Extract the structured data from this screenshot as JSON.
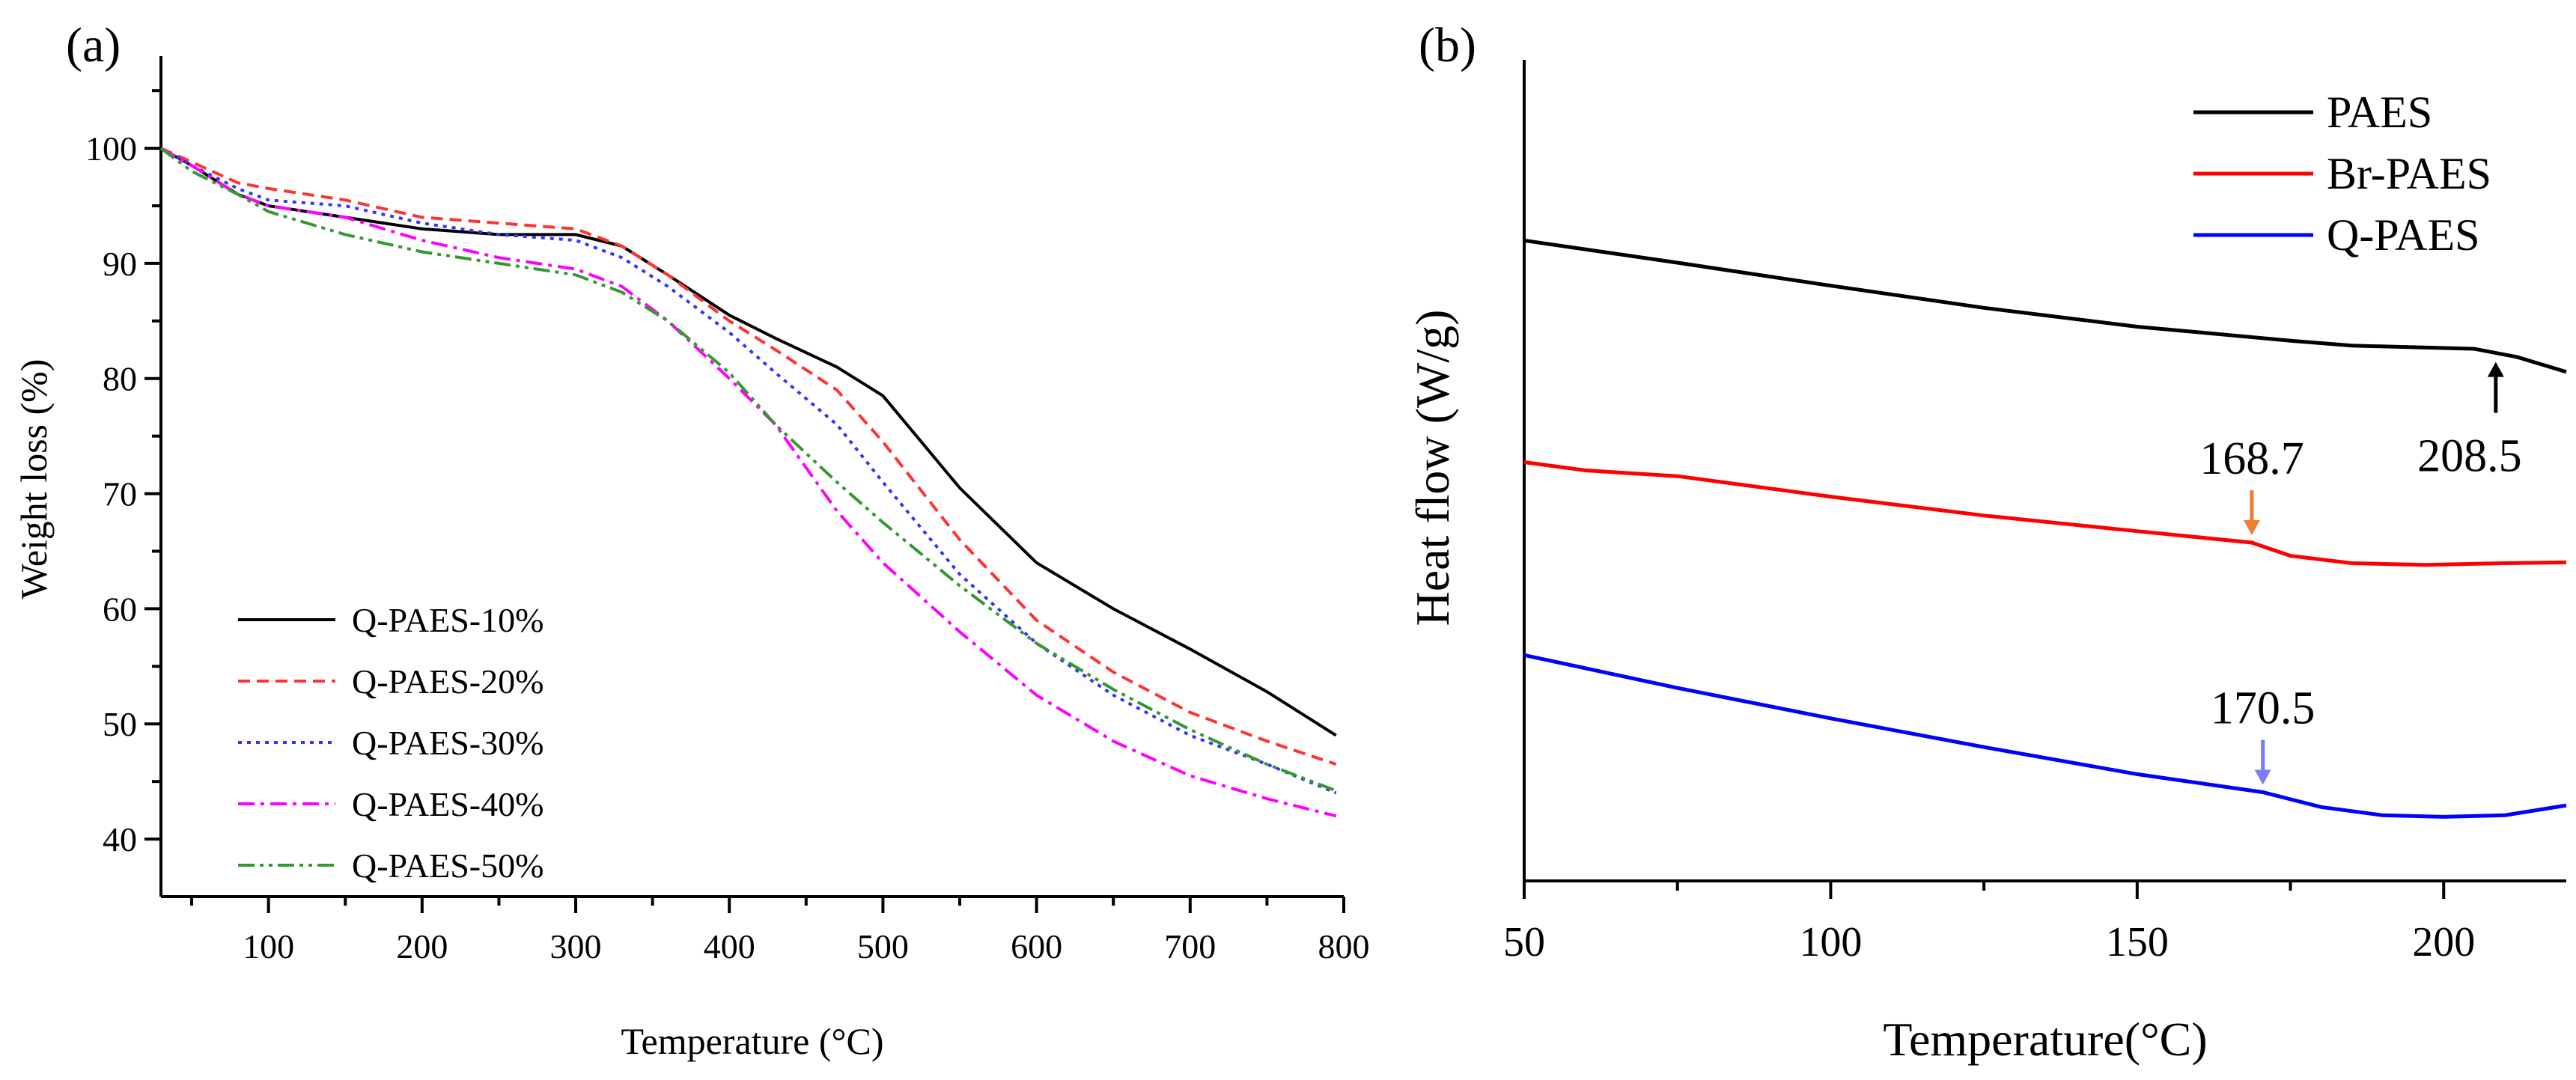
{
  "chart_data": [
    {
      "panel": "(a)",
      "type": "line",
      "xlabel": "Temperature (°C)",
      "ylabel": "Weight loss (%)",
      "xlim": [
        30,
        800
      ],
      "ylim": [
        35,
        108
      ],
      "xticks": [
        100,
        200,
        300,
        400,
        500,
        600,
        700,
        800
      ],
      "yticks": [
        40,
        50,
        60,
        70,
        80,
        90,
        100
      ],
      "legend_position": "bottom-left",
      "series": [
        {
          "name": "Q-PAES-10%",
          "color": "#000000",
          "style": "solid",
          "x": [
            30,
            50,
            80,
            100,
            150,
            200,
            250,
            300,
            330,
            360,
            400,
            430,
            470,
            500,
            550,
            600,
            650,
            700,
            750,
            795
          ],
          "y": [
            100,
            98.5,
            96,
            95,
            94,
            93,
            92.5,
            92.5,
            91.5,
            89,
            85.5,
            83.5,
            81,
            78.5,
            70.5,
            64,
            60,
            56.5,
            52.8,
            49
          ]
        },
        {
          "name": "Q-PAES-20%",
          "color": "#ff3333",
          "style": "dashed",
          "x": [
            30,
            50,
            80,
            100,
            150,
            200,
            250,
            300,
            330,
            360,
            400,
            430,
            470,
            500,
            550,
            600,
            650,
            700,
            750,
            795
          ],
          "y": [
            100,
            98.8,
            97,
            96.5,
            95.5,
            94,
            93.5,
            93,
            91.5,
            89,
            85,
            82.5,
            79,
            74.5,
            66,
            59,
            54.5,
            51,
            48.5,
            46.5
          ]
        },
        {
          "name": "Q-PAES-30%",
          "color": "#3333ff",
          "style": "dotted",
          "x": [
            30,
            50,
            80,
            100,
            150,
            200,
            250,
            300,
            330,
            360,
            400,
            430,
            470,
            500,
            550,
            600,
            650,
            700,
            750,
            795
          ],
          "y": [
            100,
            98.5,
            96.5,
            95.5,
            95,
            93.5,
            92.5,
            92,
            90.5,
            88,
            84,
            80.5,
            76,
            71,
            63,
            57,
            52.5,
            49,
            46.5,
            44
          ]
        },
        {
          "name": "Q-PAES-40%",
          "color": "#ff00ff",
          "style": "dashdot",
          "x": [
            30,
            50,
            80,
            100,
            150,
            200,
            250,
            300,
            330,
            360,
            400,
            430,
            470,
            500,
            550,
            600,
            650,
            700,
            750,
            795
          ],
          "y": [
            100,
            98.5,
            96,
            95,
            94,
            92,
            90.5,
            89.5,
            88,
            85,
            80,
            76,
            68.5,
            64,
            58,
            52.5,
            48.5,
            45.5,
            43.5,
            42
          ]
        },
        {
          "name": "Q-PAES-50%",
          "color": "#339933",
          "style": "dashdotdot",
          "x": [
            30,
            50,
            80,
            100,
            150,
            200,
            250,
            300,
            330,
            360,
            400,
            430,
            470,
            500,
            550,
            600,
            650,
            700,
            750,
            795
          ],
          "y": [
            100,
            98,
            96,
            94.5,
            92.5,
            91,
            90,
            89,
            87.5,
            85,
            80.5,
            76,
            71,
            67.5,
            62,
            57,
            53,
            49.5,
            46.5,
            44.2
          ]
        }
      ]
    },
    {
      "panel": "(b)",
      "type": "line",
      "xlabel": "Temperature(°C)",
      "ylabel": "Heat flow (W/g)",
      "xlim": [
        50,
        220
      ],
      "ylim": [
        0,
        100
      ],
      "xticks": [
        50,
        100,
        150,
        200
      ],
      "yticks": [],
      "legend_position": "top-right",
      "series": [
        {
          "name": "PAES",
          "color": "#000000",
          "x": [
            50,
            75,
            100,
            125,
            150,
            175,
            185,
            205,
            212,
            220
          ],
          "y": [
            78,
            75.3,
            72.5,
            69.8,
            67.5,
            65.8,
            65.2,
            64.8,
            63.8,
            62
          ]
        },
        {
          "name": "Br-PAES",
          "color": "#ff0000",
          "x": [
            50,
            60,
            75,
            100,
            125,
            150,
            168.7,
            175,
            185,
            197,
            210,
            220
          ],
          "y": [
            51,
            50,
            49.3,
            46.8,
            44.5,
            42.6,
            41.2,
            39.6,
            38.7,
            38.5,
            38.7,
            38.8
          ]
        },
        {
          "name": "Q-PAES",
          "color": "#0000ff",
          "x": [
            50,
            75,
            100,
            125,
            150,
            170.5,
            180,
            190,
            200,
            210,
            220
          ],
          "y": [
            27.5,
            23.5,
            19.8,
            16.3,
            13,
            10.8,
            9,
            8,
            7.8,
            8,
            9.2
          ]
        }
      ],
      "annotations": [
        {
          "text": "208.5",
          "x": 208.5,
          "series": "PAES",
          "arrow_color": "#000000"
        },
        {
          "text": "168.7",
          "x": 168.7,
          "series": "Br-PAES",
          "arrow_color": "#ed7d31"
        },
        {
          "text": "170.5",
          "x": 170.5,
          "series": "Q-PAES",
          "arrow_color": "#7b7bff"
        }
      ]
    }
  ]
}
